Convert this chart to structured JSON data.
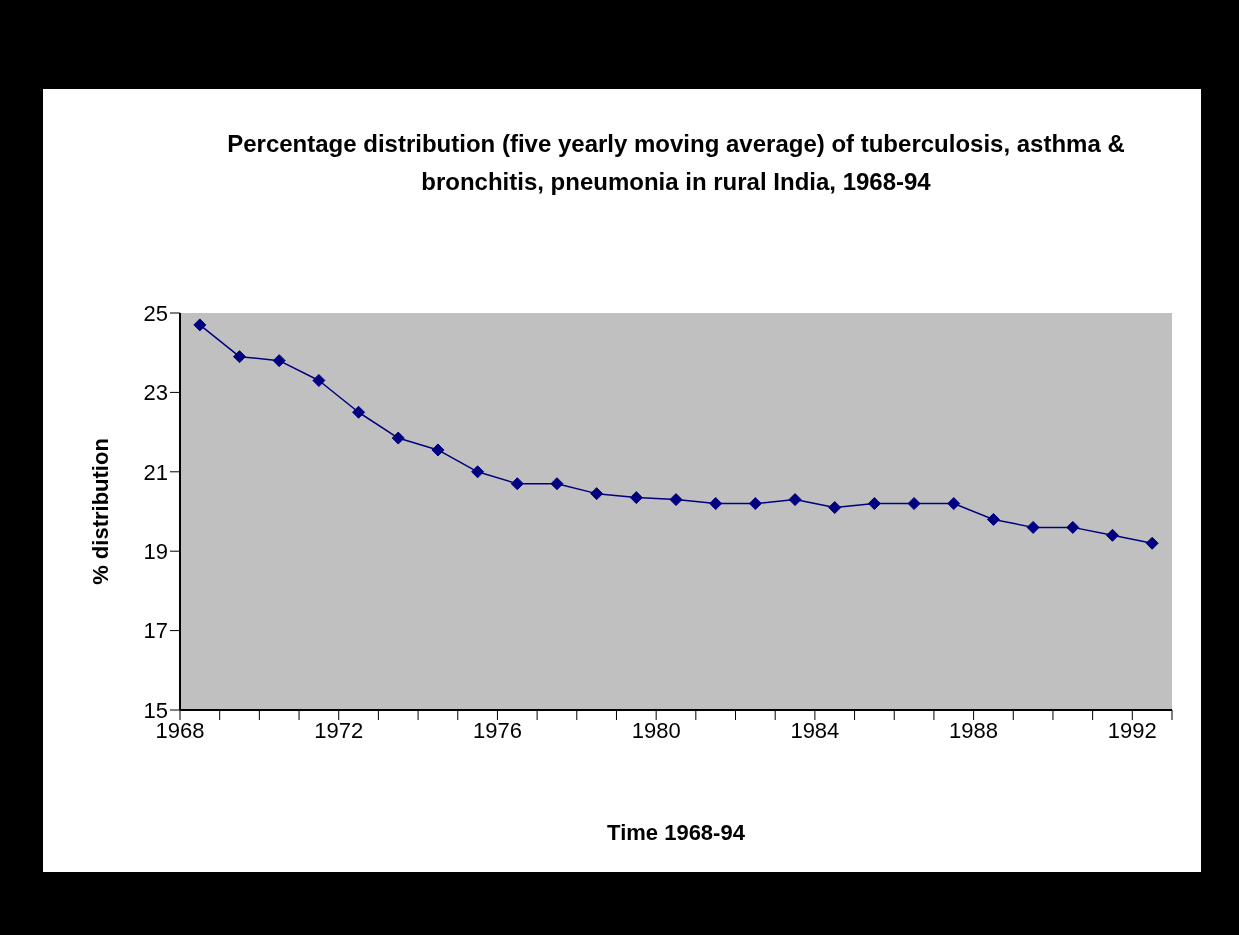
{
  "chart_data": {
    "type": "line",
    "title": "Percentage distribution (five yearly moving average) of tuberculosis, asthma & bronchitis, pneumonia in rural India, 1968-94",
    "xlabel": "Time 1968-94",
    "ylabel": "% distribution",
    "x": [
      1968.5,
      1969.5,
      1970.5,
      1971.5,
      1972.5,
      1973.5,
      1974.5,
      1975.5,
      1976.5,
      1977.5,
      1978.5,
      1979.5,
      1980.5,
      1981.5,
      1982.5,
      1983.5,
      1984.5,
      1985.5,
      1986.5,
      1987.5,
      1988.5,
      1989.5,
      1990.5,
      1991.5,
      1992.5
    ],
    "series": [
      {
        "color": "#000080",
        "values": [
          24.7,
          23.9,
          23.8,
          23.3,
          22.5,
          21.85,
          21.55,
          21.0,
          20.7,
          20.7,
          20.45,
          20.35,
          20.3,
          20.2,
          20.2,
          20.3,
          20.1,
          20.2,
          20.2,
          20.2,
          19.8,
          19.6,
          19.6,
          19.4,
          19.2
        ]
      }
    ],
    "xlim": [
      1968,
      1993
    ],
    "xticks": [
      1968,
      {
        "value": 1969,
        "label": null
      },
      {
        "value": 1970,
        "label": null
      },
      {
        "value": 1971,
        "label": null
      },
      1972,
      {
        "value": 1973,
        "label": null
      },
      {
        "value": 1974,
        "label": null
      },
      {
        "value": 1975,
        "label": null
      },
      1976,
      {
        "value": 1977,
        "label": null
      },
      {
        "value": 1978,
        "label": null
      },
      {
        "value": 1979,
        "label": null
      },
      1980,
      {
        "value": 1981,
        "label": null
      },
      {
        "value": 1982,
        "label": null
      },
      {
        "value": 1983,
        "label": null
      },
      1984,
      {
        "value": 1985,
        "label": null
      },
      {
        "value": 1986,
        "label": null
      },
      {
        "value": 1987,
        "label": null
      },
      1988,
      {
        "value": 1989,
        "label": null
      },
      {
        "value": 1990,
        "label": null
      },
      {
        "value": 1991,
        "label": null
      },
      1992,
      {
        "value": 1993,
        "label": null
      }
    ],
    "ylim": [
      15,
      25
    ],
    "yticks": [
      15,
      17,
      19,
      21,
      23,
      25
    ],
    "grid": false,
    "legend": false,
    "marker": "diamond",
    "line_style": "solid"
  }
}
